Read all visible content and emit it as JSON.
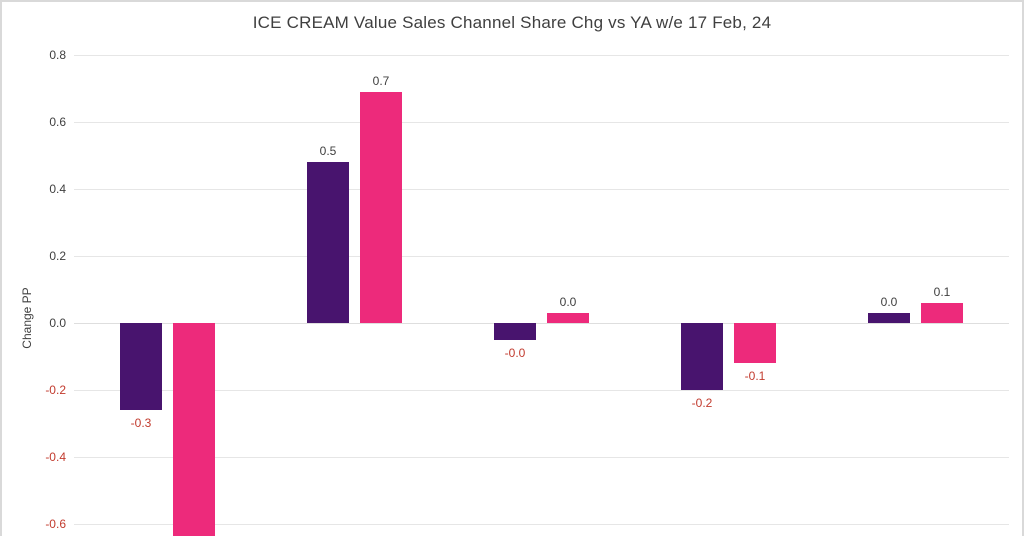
{
  "chart_data": {
    "type": "bar",
    "title": "ICE CREAM Value Sales Channel Share Chg vs YA w/e 17 Feb, 24",
    "xlabel": "",
    "ylabel": "Change PP",
    "ylim_full": [
      -0.8,
      0.8
    ],
    "ylim_visible_bottom_clipped": true,
    "grid": "horizontal",
    "legend_visible": false,
    "categories_visible": false,
    "n_groups": 5,
    "y_ticks": [
      {
        "label": "0.8",
        "value": 0.8
      },
      {
        "label": "0.6",
        "value": 0.6
      },
      {
        "label": "0.4",
        "value": 0.4
      },
      {
        "label": "0.2",
        "value": 0.2
      },
      {
        "label": "0.0",
        "value": 0.0
      },
      {
        "label": "-0.2",
        "value": -0.2
      },
      {
        "label": "-0.4",
        "value": -0.4
      },
      {
        "label": "-0.6",
        "value": -0.6
      }
    ],
    "series": [
      {
        "name": "purple-series",
        "color": "#48146e",
        "values": [
          -0.26,
          0.48,
          -0.05,
          -0.2,
          0.03
        ],
        "labels": [
          "-0.3",
          "0.5",
          "-0.0",
          "-0.2",
          "0.0"
        ]
      },
      {
        "name": "pink-series",
        "color": "#ed2a7b",
        "values": [
          -0.7,
          0.69,
          0.03,
          -0.12,
          0.06
        ],
        "labels": [
          null,
          "0.7",
          "0.0",
          "-0.1",
          "0.1"
        ],
        "clipped_bars": [
          0
        ]
      }
    ],
    "label_color_positive": "#3f3f3f",
    "label_color_negative": "#c23b2e",
    "tick_color_positive": "#3f3f3f",
    "tick_color_negative": "#c23b2e"
  }
}
